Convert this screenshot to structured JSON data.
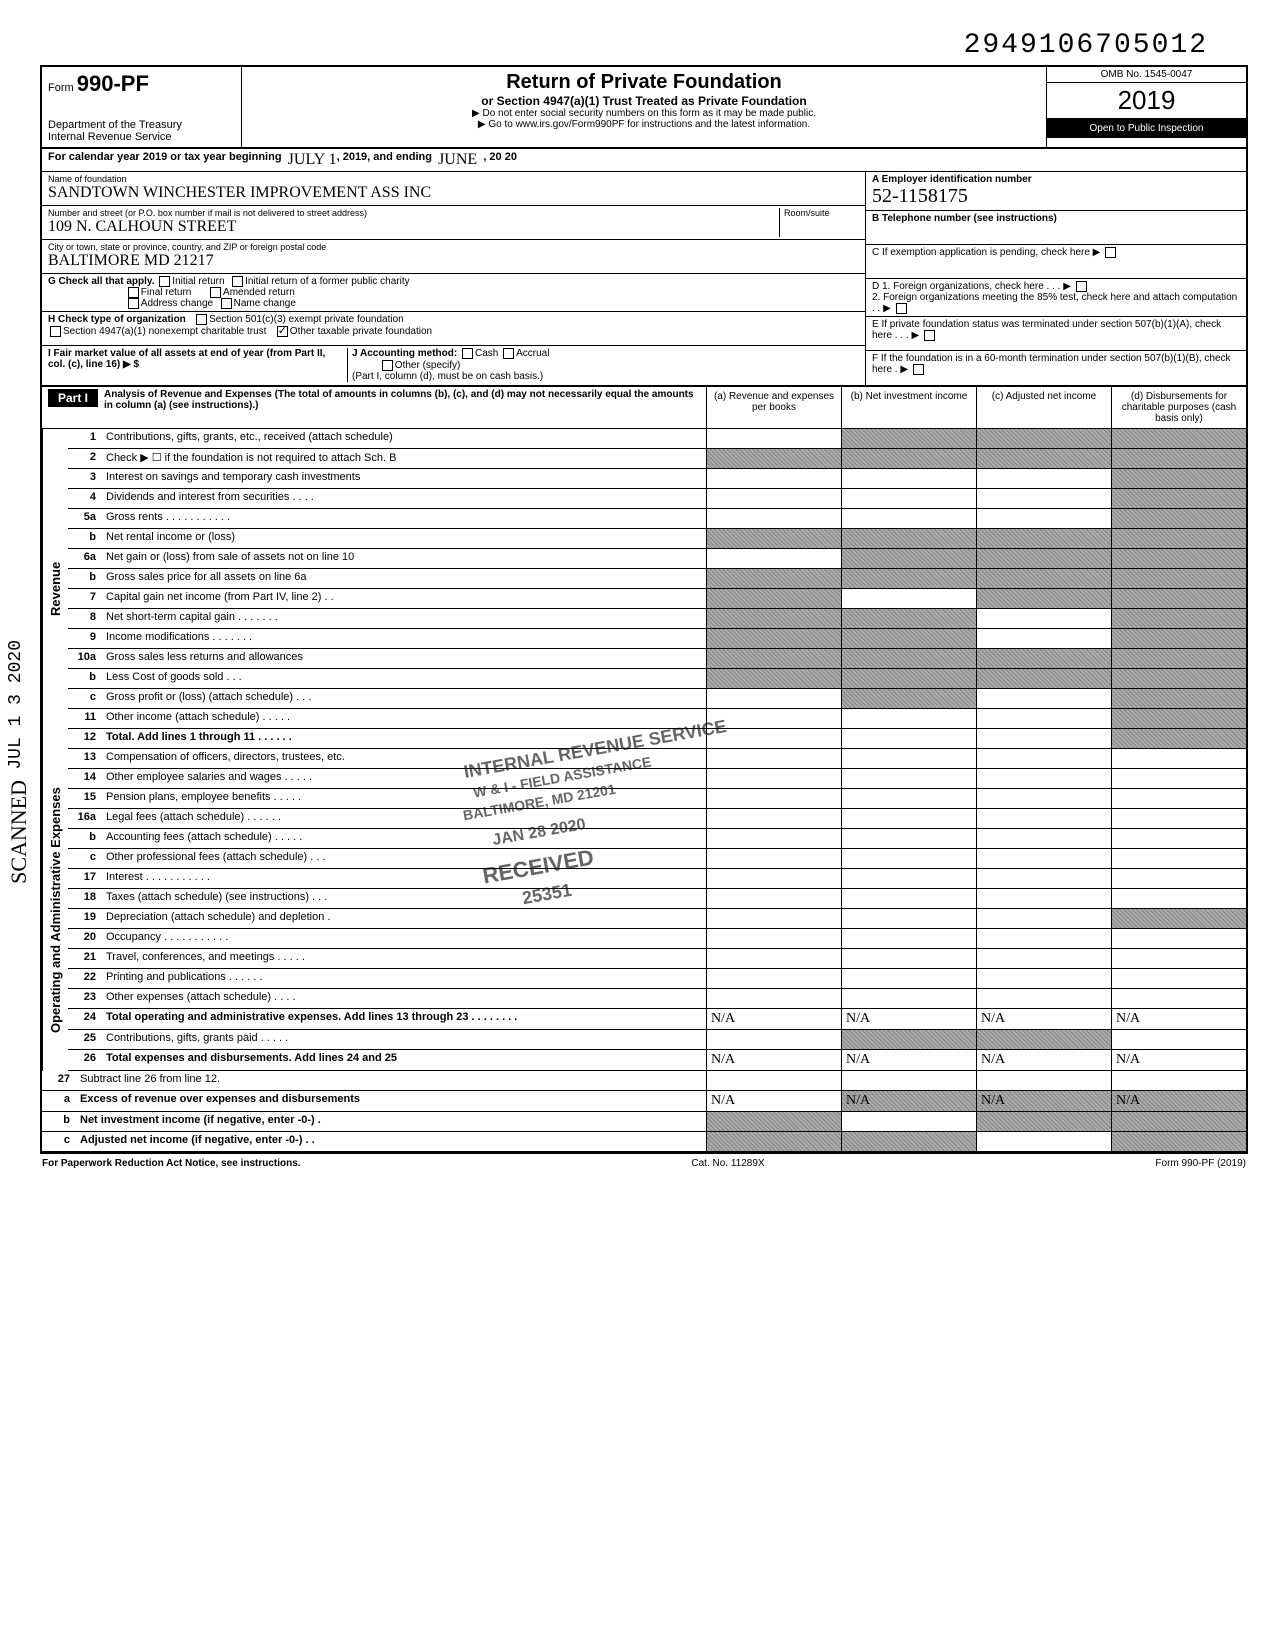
{
  "top_number": "2949106705012",
  "header": {
    "form_prefix": "Form",
    "form_number": "990-PF",
    "title": "Return of Private Foundation",
    "subtitle": "or Section 4947(a)(1) Trust Treated as Private Foundation",
    "warn1": "▶ Do not enter social security numbers on this form as it may be made public.",
    "warn2": "▶ Go to www.irs.gov/Form990PF for instructions and the latest information.",
    "dept1": "Department of the Treasury",
    "dept2": "Internal Revenue Service",
    "omb": "OMB No. 1545-0047",
    "year": "2019",
    "open": "Open to Public Inspection"
  },
  "cal_year": {
    "prefix": "For calendar year 2019 or tax year beginning",
    "begin": "JULY 1",
    "mid": ", 2019, and ending",
    "end": "JUNE",
    "end2": ", 20 20"
  },
  "identity": {
    "name_label": "Name of foundation",
    "name": "SANDTOWN WINCHESTER IMPROVEMENT ASS INC",
    "street_label": "Number and street (or P.O. box number if mail is not delivered to street address)",
    "street": "109   N. CALHOUN STREET",
    "room_label": "Room/suite",
    "city_label": "City or town, state or province, country, and ZIP or foreign postal code",
    "city": "BALTIMORE   MD        21217",
    "ein_label": "A  Employer identification number",
    "ein": "52-1158175",
    "tel_label": "B  Telephone number (see instructions)",
    "c_label": "C  If exemption application is pending, check here ▶",
    "g_label": "G   Check all that apply.",
    "g_opts": [
      "Initial return",
      "Initial return of a former public charity",
      "Final return",
      "Amended return",
      "Address change",
      "Name change"
    ],
    "d1": "D 1. Foreign organizations, check here .   .   . ▶",
    "d2": "2. Foreign organizations meeting the 85% test, check here and attach computation   .   . ▶",
    "h_label": "H   Check type of organization",
    "h_opts": [
      "Section 501(c)(3) exempt private foundation",
      "Section 4947(a)(1) nonexempt charitable trust",
      "Other taxable private foundation"
    ],
    "e_label": "E  If private foundation status was terminated under section 507(b)(1)(A), check here   .   .   . ▶",
    "i_label": "I    Fair market value of all assets at end of year (from Part II, col. (c), line 16) ▶ $",
    "j_label": "J   Accounting method:",
    "j_opts": [
      "Cash",
      "Accrual",
      "Other (specify)"
    ],
    "j_note": "(Part I, column (d), must be on cash basis.)",
    "f_label": "F  If the foundation is in a 60-month termination under section 507(b)(1)(B), check here   . ▶"
  },
  "part1": {
    "bar": "Part I",
    "head": "Analysis of Revenue and Expenses (The total of amounts in columns (b), (c), and (d) may not necessarily equal the amounts in column (a) (see instructions).)",
    "cols": [
      "(a) Revenue and expenses per books",
      "(b) Net investment income",
      "(c) Adjusted net income",
      "(d) Disbursements for charitable purposes (cash basis only)"
    ]
  },
  "side_labels": {
    "revenue": "Revenue",
    "opadmin": "Operating and Administrative Expenses"
  },
  "lines": [
    {
      "n": "1",
      "t": "Contributions, gifts, grants, etc., received (attach schedule)",
      "g": [
        0,
        1,
        1,
        1
      ]
    },
    {
      "n": "2",
      "t": "Check ▶ ☐ if the foundation is not required to attach Sch. B",
      "g": [
        1,
        1,
        1,
        1
      ]
    },
    {
      "n": "3",
      "t": "Interest on savings and temporary cash investments",
      "g": [
        0,
        0,
        0,
        1
      ]
    },
    {
      "n": "4",
      "t": "Dividends and interest from securities  .   .   .   .",
      "g": [
        0,
        0,
        0,
        1
      ]
    },
    {
      "n": "5a",
      "t": "Gross rents  .   .   .   .   .   .   .   .   .   .   .",
      "g": [
        0,
        0,
        0,
        1
      ]
    },
    {
      "n": "b",
      "t": "Net rental income or (loss)",
      "g": [
        1,
        1,
        1,
        1
      ]
    },
    {
      "n": "6a",
      "t": "Net gain or (loss) from sale of assets not on line 10",
      "g": [
        0,
        1,
        1,
        1
      ]
    },
    {
      "n": "b",
      "t": "Gross sales price for all assets on line 6a",
      "g": [
        1,
        1,
        1,
        1
      ]
    },
    {
      "n": "7",
      "t": "Capital gain net income (from Part IV, line 2)  .   .",
      "g": [
        1,
        0,
        1,
        1
      ]
    },
    {
      "n": "8",
      "t": "Net short-term capital gain  .   .   .   .   .   .   .",
      "g": [
        1,
        1,
        0,
        1
      ]
    },
    {
      "n": "9",
      "t": "Income modifications      .   .   .   .   .   .   .",
      "g": [
        1,
        1,
        0,
        1
      ]
    },
    {
      "n": "10a",
      "t": "Gross sales less returns and allowances",
      "g": [
        1,
        1,
        1,
        1
      ]
    },
    {
      "n": "b",
      "t": "Less Cost of goods sold   .   .   .",
      "g": [
        1,
        1,
        1,
        1
      ]
    },
    {
      "n": "c",
      "t": "Gross profit or (loss) (attach schedule)  .   .   .",
      "g": [
        0,
        1,
        0,
        1
      ]
    },
    {
      "n": "11",
      "t": "Other income (attach schedule)   .   .   .   .   .",
      "g": [
        0,
        0,
        0,
        1
      ]
    },
    {
      "n": "12",
      "t": "Total. Add lines 1 through 11  .   .   .   .   .   .",
      "g": [
        0,
        0,
        0,
        1
      ],
      "bold": true
    }
  ],
  "oplines": [
    {
      "n": "13",
      "t": "Compensation of officers, directors, trustees, etc.",
      "g": [
        0,
        0,
        0,
        0
      ]
    },
    {
      "n": "14",
      "t": "Other employee salaries and wages  .   .   .   .   .",
      "g": [
        0,
        0,
        0,
        0
      ]
    },
    {
      "n": "15",
      "t": "Pension plans, employee benefits   .   .   .   .   .",
      "g": [
        0,
        0,
        0,
        0
      ]
    },
    {
      "n": "16a",
      "t": "Legal fees (attach schedule)    .   .   .   .   .   .",
      "g": [
        0,
        0,
        0,
        0
      ]
    },
    {
      "n": "b",
      "t": "Accounting fees (attach schedule)  .   .   .   .   .",
      "g": [
        0,
        0,
        0,
        0
      ]
    },
    {
      "n": "c",
      "t": "Other professional fees (attach schedule)  .   .   .",
      "g": [
        0,
        0,
        0,
        0
      ]
    },
    {
      "n": "17",
      "t": "Interest   .   .   .   .   .   .   .   .   .   .   .",
      "g": [
        0,
        0,
        0,
        0
      ]
    },
    {
      "n": "18",
      "t": "Taxes (attach schedule) (see instructions)  .   .   .",
      "g": [
        0,
        0,
        0,
        0
      ]
    },
    {
      "n": "19",
      "t": "Depreciation (attach schedule) and depletion  .",
      "g": [
        0,
        0,
        0,
        1
      ]
    },
    {
      "n": "20",
      "t": "Occupancy  .   .   .   .   .   .   .   .   .   .   .",
      "g": [
        0,
        0,
        0,
        0
      ]
    },
    {
      "n": "21",
      "t": "Travel, conferences, and meetings  .   .   .   .   .",
      "g": [
        0,
        0,
        0,
        0
      ]
    },
    {
      "n": "22",
      "t": "Printing and publications    .   .   .   .   .   .",
      "g": [
        0,
        0,
        0,
        0
      ]
    },
    {
      "n": "23",
      "t": "Other expenses (attach schedule)    .   .   .   .",
      "g": [
        0,
        0,
        0,
        0
      ]
    },
    {
      "n": "24",
      "t": "Total operating and administrative expenses. Add lines 13 through 23 .   .   .   .   .   .   .   .",
      "g": [
        0,
        0,
        0,
        0
      ],
      "bold": true,
      "na": true
    },
    {
      "n": "25",
      "t": "Contributions, gifts, grants paid   .   .   .   .   .",
      "g": [
        0,
        1,
        1,
        0
      ]
    },
    {
      "n": "26",
      "t": "Total expenses and disbursements. Add lines 24 and 25",
      "g": [
        0,
        0,
        0,
        0
      ],
      "bold": true,
      "na": true
    }
  ],
  "bottomlines": [
    {
      "n": "27",
      "t": "Subtract line 26 from line 12.",
      "g": [
        2,
        2,
        2,
        2
      ]
    },
    {
      "n": "a",
      "t": "Excess of revenue over expenses and disbursements",
      "g": [
        0,
        1,
        1,
        1
      ],
      "bold": true,
      "na": true
    },
    {
      "n": "b",
      "t": "Net investment income (if negative, enter -0-)   .",
      "g": [
        1,
        0,
        1,
        1
      ],
      "bold": true
    },
    {
      "n": "c",
      "t": "Adjusted net income (if negative, enter -0-)   .   .",
      "g": [
        1,
        1,
        0,
        1
      ],
      "bold": true
    }
  ],
  "stamps": {
    "s1": "INTERNAL REVENUE SERVICE",
    "s2": "W & I - FIELD ASSISTANCE",
    "s3": "BALTIMORE, MD 21201",
    "s4": "JAN 28 2020",
    "s5": "RECEIVED",
    "s6": "25351"
  },
  "footer": {
    "left": "For Paperwork Reduction Act Notice, see instructions.",
    "mid": "Cat. No. 11289X",
    "right": "Form 990-PF (2019)"
  },
  "margin": {
    "scanned": "SCANNED",
    "jul": "JUL 1 3 2020"
  },
  "na_text": "N/A"
}
